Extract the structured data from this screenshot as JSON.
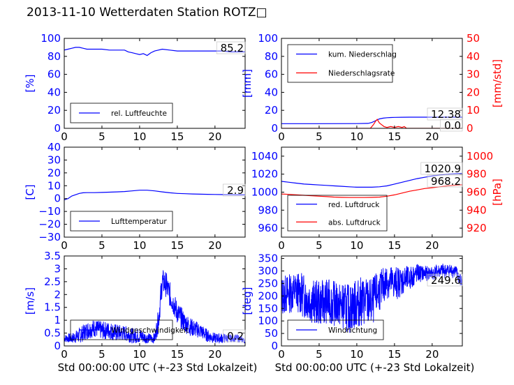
{
  "figure": {
    "title": "2013-11-10 Wetterdaten Station ROTZ",
    "title_glyph": "□",
    "colors": {
      "primary": "#0000ff",
      "secondary": "#ff0000",
      "axis": "#000000"
    }
  },
  "chart_data": [
    {
      "type": "line",
      "panel": "humidity",
      "ylabel": "[%]",
      "xlim": [
        0,
        24
      ],
      "ylim": [
        0,
        100
      ],
      "xticks": [
        0,
        5,
        10,
        15,
        20
      ],
      "yticks": [
        0,
        20,
        40,
        60,
        80,
        100
      ],
      "value_label": "85.2",
      "legend": {
        "placement": "lower-left",
        "entries": [
          {
            "label": "rel. Luftfeuchte",
            "color": "#0000ff"
          }
        ]
      },
      "series": [
        {
          "name": "rel. Luftfeuchte",
          "color": "#0000ff",
          "axis": "left",
          "x": [
            0,
            0.5,
            1,
            1.5,
            2,
            2.5,
            3,
            4,
            5,
            6,
            7,
            8,
            8.5,
            9,
            9.5,
            10,
            10.5,
            11,
            11.5,
            12,
            12.5,
            13,
            14,
            15,
            16,
            17,
            18,
            19,
            20,
            21,
            22,
            23,
            24
          ],
          "y": [
            87,
            88,
            89,
            90,
            90,
            89,
            88,
            88,
            88,
            87,
            87,
            87,
            85,
            84,
            83,
            82,
            83,
            81,
            84,
            86,
            87,
            88,
            87,
            86,
            86,
            86,
            86,
            86,
            86,
            86,
            85,
            85,
            85
          ]
        }
      ]
    },
    {
      "type": "line",
      "panel": "precipitation",
      "ylabel": "[mm]",
      "ylabel_right": "[mm/std]",
      "xlim": [
        0,
        24
      ],
      "ylim": [
        0,
        100
      ],
      "ylim_right": [
        0,
        50
      ],
      "xticks": [
        0,
        5,
        10,
        15,
        20
      ],
      "yticks": [
        0,
        20,
        40,
        60,
        80,
        100
      ],
      "yticks_right": [
        0,
        10,
        20,
        30,
        40,
        50
      ],
      "value_labels": [
        "12.38",
        "0.0"
      ],
      "legend": {
        "placement": "upper-left",
        "entries": [
          {
            "label": "kum. Niederschlag",
            "color": "#0000ff"
          },
          {
            "label": "Niederschlagsrate",
            "color": "#ff0000"
          }
        ]
      },
      "series": [
        {
          "name": "kum. Niederschlag",
          "color": "#0000ff",
          "axis": "left",
          "x": [
            0,
            5,
            10,
            11.5,
            12,
            12.5,
            13,
            13.5,
            14,
            14.5,
            15,
            16,
            17,
            20,
            24
          ],
          "y": [
            5.2,
            5.2,
            5.3,
            5.5,
            6.5,
            8.5,
            10.5,
            11.3,
            11.8,
            12,
            12.2,
            12.3,
            12.38,
            12.38,
            12.38
          ]
        },
        {
          "name": "Niederschlagsrate",
          "color": "#ff0000",
          "axis": "right",
          "x": [
            0,
            10,
            11.8,
            12.2,
            12.5,
            12.7,
            13,
            13.3,
            13.6,
            14,
            14.5,
            15,
            15.5,
            16,
            16.3,
            16.6,
            24
          ],
          "y": [
            0,
            0,
            0,
            2,
            4,
            5,
            3,
            2,
            1,
            0.5,
            1,
            0.5,
            1,
            0.5,
            1,
            0,
            0
          ]
        }
      ]
    },
    {
      "type": "line",
      "panel": "temperature",
      "ylabel": "[C]",
      "xlim": [
        0,
        24
      ],
      "ylim": [
        -30,
        40
      ],
      "xticks": [
        0,
        5,
        10,
        15,
        20
      ],
      "yticks": [
        -30,
        -20,
        -10,
        0,
        10,
        20,
        30,
        40
      ],
      "value_label": "2.9",
      "legend": {
        "placement": "lower-left",
        "entries": [
          {
            "label": "Lufttemperatur",
            "color": "#0000ff"
          }
        ]
      },
      "series": [
        {
          "name": "Lufttemperatur",
          "color": "#0000ff",
          "axis": "left",
          "x": [
            0,
            0.5,
            1,
            1.5,
            2,
            2.5,
            3,
            4,
            5,
            6,
            7,
            8,
            9,
            10,
            11,
            12,
            13,
            14,
            15,
            16,
            17,
            18,
            19,
            20,
            21,
            22,
            23,
            24
          ],
          "y": [
            -1,
            0,
            2,
            3,
            4,
            4.5,
            4.6,
            4.6,
            4.8,
            5,
            5.2,
            5.5,
            6,
            6.5,
            6.5,
            6,
            5.2,
            4.5,
            4,
            3.8,
            3.6,
            3.4,
            3.3,
            3.2,
            3.1,
            3,
            2.9,
            2.9
          ]
        }
      ]
    },
    {
      "type": "line",
      "panel": "pressure",
      "ylabel_right": "[hPa]",
      "xlim": [
        0,
        24
      ],
      "ylim": [
        950,
        1050
      ],
      "ylim_right": [
        910,
        1010
      ],
      "xticks": [
        0,
        5,
        10,
        15,
        20
      ],
      "yticks": [
        960,
        980,
        1000,
        1020,
        1040
      ],
      "yticks_right": [
        920,
        940,
        960,
        980,
        1000
      ],
      "value_labels": [
        "1020.9",
        "968.2"
      ],
      "legend": {
        "placement": "lower-left",
        "entries": [
          {
            "label": "red. Luftdruck",
            "color": "#0000ff"
          },
          {
            "label": "abs. Luftdruck",
            "color": "#ff0000"
          }
        ]
      },
      "series": [
        {
          "name": "red. Luftdruck",
          "color": "#0000ff",
          "axis": "left",
          "x": [
            0,
            1,
            2,
            3,
            4,
            5,
            6,
            7,
            8,
            9,
            10,
            11,
            12,
            13,
            14,
            15,
            16,
            17,
            18,
            19,
            20,
            21,
            22,
            23,
            24
          ],
          "y": [
            1012,
            1011,
            1010,
            1009,
            1008.5,
            1008,
            1007.5,
            1007,
            1006.5,
            1006,
            1005.5,
            1005.5,
            1005.5,
            1006,
            1007,
            1009,
            1011,
            1013,
            1015,
            1016.5,
            1018,
            1019,
            1020,
            1020.5,
            1020.9
          ]
        },
        {
          "name": "abs. Luftdruck",
          "color": "#ff0000",
          "axis": "right",
          "x": [
            0,
            1,
            2,
            3,
            4,
            5,
            6,
            7,
            8,
            9,
            10,
            11,
            12,
            13,
            14,
            15,
            16,
            17,
            18,
            19,
            20,
            21,
            22,
            23,
            24
          ],
          "y": [
            958,
            957.5,
            957,
            956.5,
            956,
            955.5,
            955,
            954.5,
            954.2,
            954,
            954,
            954,
            954.2,
            954.5,
            955.5,
            957,
            959,
            961,
            962.5,
            964,
            965,
            966,
            967,
            967.7,
            968.2
          ]
        }
      ]
    },
    {
      "type": "line",
      "panel": "wind-speed",
      "ylabel": "[m/s]",
      "xlabel": "Std 00:00:00 UTC (+-23 Std Lokalzeit)",
      "xlim": [
        0,
        24
      ],
      "ylim": [
        0,
        3.5
      ],
      "xticks": [
        0,
        5,
        10,
        15,
        20
      ],
      "yticks": [
        0,
        0.5,
        1,
        1.5,
        2,
        2.5,
        3,
        3.5
      ],
      "value_label": "0.2",
      "legend": {
        "placement": "lower-left",
        "entries": [
          {
            "label": "Windgeschwindigkeit",
            "color": "#0000ff"
          }
        ]
      },
      "series": [
        {
          "name": "Windgeschwindigkeit",
          "color": "#0000ff",
          "axis": "left",
          "noisy": true,
          "noise_seed": 7,
          "x": [
            0,
            1,
            2,
            3,
            4,
            5,
            6,
            7,
            8,
            9,
            10,
            11,
            12,
            12.5,
            13,
            13.5,
            14,
            15,
            16,
            17,
            18,
            19,
            20,
            21,
            22,
            23,
            24
          ],
          "y": [
            0.3,
            0.3,
            0.4,
            0.6,
            0.7,
            0.6,
            0.6,
            0.5,
            0.5,
            0.4,
            0.4,
            0.3,
            0.3,
            1.0,
            2.5,
            2.4,
            2.0,
            1.3,
            0.9,
            0.7,
            0.6,
            0.4,
            0.3,
            0.3,
            0.3,
            0.3,
            0.2
          ],
          "noise_amplitude": [
            0.15,
            0.2,
            0.3,
            0.35,
            0.35,
            0.35,
            0.35,
            0.35,
            0.3,
            0.3,
            0.3,
            0.2,
            0.2,
            0.5,
            0.5,
            0.5,
            0.5,
            0.45,
            0.4,
            0.35,
            0.3,
            0.25,
            0.2,
            0.2,
            0.15,
            0.15,
            0.1
          ]
        }
      ]
    },
    {
      "type": "line",
      "panel": "wind-direction",
      "ylabel": "[deg]",
      "xlabel": "Std 00:00:00 UTC (+-23 Std Lokalzeit)",
      "xlim": [
        0,
        24
      ],
      "ylim": [
        0,
        360
      ],
      "xticks": [
        0,
        5,
        10,
        15,
        20
      ],
      "yticks": [
        0,
        50,
        100,
        150,
        200,
        250,
        300,
        350
      ],
      "value_label": "249.6",
      "legend": {
        "placement": "lower-left",
        "entries": [
          {
            "label": "Windrichtung",
            "color": "#0000ff"
          }
        ]
      },
      "series": [
        {
          "name": "Windrichtung",
          "color": "#0000ff",
          "axis": "left",
          "noisy": true,
          "noise_seed": 13,
          "x": [
            0,
            1,
            2,
            3,
            4,
            5,
            6,
            7,
            8,
            9,
            10,
            11,
            12,
            12.5,
            13,
            14,
            15,
            16,
            17,
            18,
            19,
            20,
            21,
            22,
            23,
            24
          ],
          "y": [
            200,
            210,
            220,
            200,
            180,
            170,
            180,
            170,
            160,
            150,
            170,
            180,
            170,
            200,
            220,
            260,
            250,
            260,
            270,
            290,
            290,
            290,
            300,
            300,
            300,
            250
          ],
          "noise_amplitude": [
            80,
            80,
            80,
            90,
            90,
            90,
            90,
            90,
            90,
            100,
            100,
            100,
            100,
            90,
            80,
            70,
            70,
            60,
            50,
            40,
            30,
            30,
            30,
            30,
            30,
            30
          ]
        }
      ]
    }
  ]
}
